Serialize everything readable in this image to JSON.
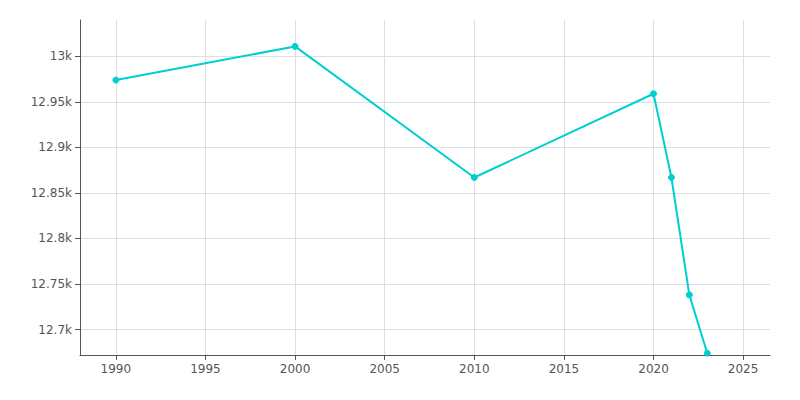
{
  "chart_data": {
    "type": "line",
    "x": [
      1990,
      2000,
      2010,
      2020,
      2021,
      2022,
      2023
    ],
    "values": [
      12974,
      13011,
      12867,
      12959,
      12867,
      12738,
      12674
    ],
    "color": "#00CED1",
    "marker": "circle",
    "xlim": [
      1988,
      2026.5
    ],
    "ylim": [
      12672,
      13040
    ],
    "xticks": [
      1990,
      1995,
      2000,
      2005,
      2010,
      2015,
      2020,
      2025
    ],
    "yticks": [
      {
        "value": 12700,
        "label": "12.7k"
      },
      {
        "value": 12750,
        "label": "12.75k"
      },
      {
        "value": 12800,
        "label": "12.8k"
      },
      {
        "value": 12850,
        "label": "12.85k"
      },
      {
        "value": 12900,
        "label": "12.9k"
      },
      {
        "value": 12950,
        "label": "12.95k"
      },
      {
        "value": 13000,
        "label": "13k"
      }
    ],
    "grid": true
  }
}
